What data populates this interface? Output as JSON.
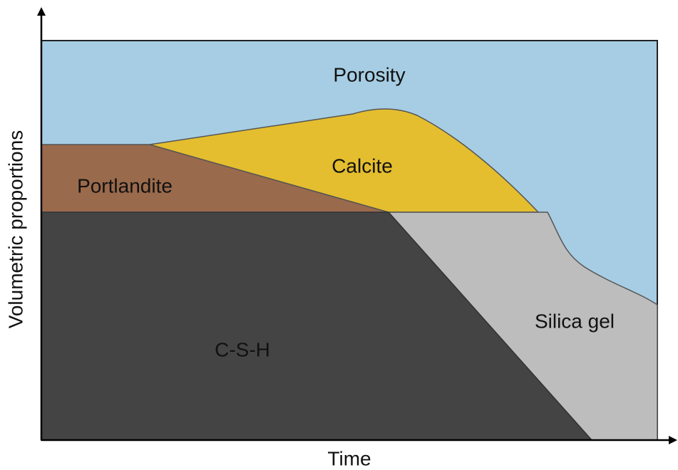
{
  "axes": {
    "x_label": "Time",
    "y_label": "Volumetric proportions"
  },
  "regions": [
    {
      "label": "Porosity"
    },
    {
      "label": "Calcite"
    },
    {
      "label": "Portlandite"
    },
    {
      "label": "Silica gel"
    },
    {
      "label": "C-S-H"
    }
  ]
}
